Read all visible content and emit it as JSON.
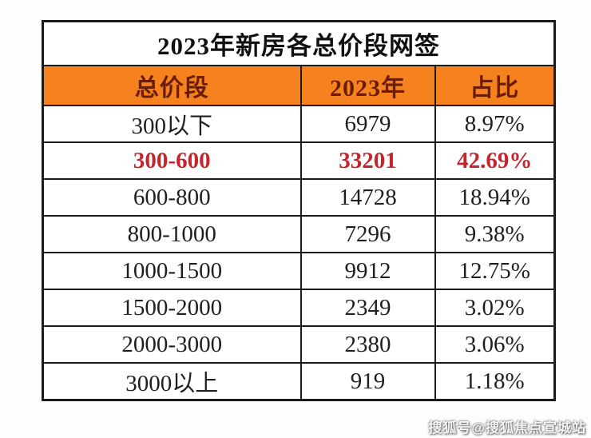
{
  "chart_data": {
    "type": "table",
    "title": "2023年新房各总价段网签",
    "columns": [
      "总价段",
      "2023年",
      "占比"
    ],
    "rows": [
      [
        "300以下",
        "6979",
        "8.97%"
      ],
      [
        "300-600",
        "33201",
        "42.69%"
      ],
      [
        "600-800",
        "14728",
        "18.94%"
      ],
      [
        "800-1000",
        "7296",
        "9.38%"
      ],
      [
        "1000-1500",
        "9912",
        "12.75%"
      ],
      [
        "1500-2000",
        "2349",
        "3.02%"
      ],
      [
        "2000-3000",
        "2380",
        "3.06%"
      ],
      [
        "3000以上",
        "919",
        "1.18%"
      ]
    ],
    "counts_numeric": [
      6979,
      33201,
      14728,
      7296,
      9912,
      2349,
      2380,
      919
    ],
    "share_percent_numeric": [
      8.97,
      42.69,
      18.94,
      9.38,
      12.75,
      3.02,
      3.06,
      1.18
    ],
    "highlight_row_index": 1,
    "layout": "three-column table, title row spans all columns, grid borders on"
  },
  "colors": {
    "header_background": "#f5821f",
    "header_text": "#6b1d04",
    "highlight_text": "#c4262e",
    "body_text": "#1f1f1f",
    "border": "#1b1b1b",
    "table_background": "#ffffff"
  },
  "watermark": {
    "text": "搜狐号@搜狐焦点宣城站"
  }
}
